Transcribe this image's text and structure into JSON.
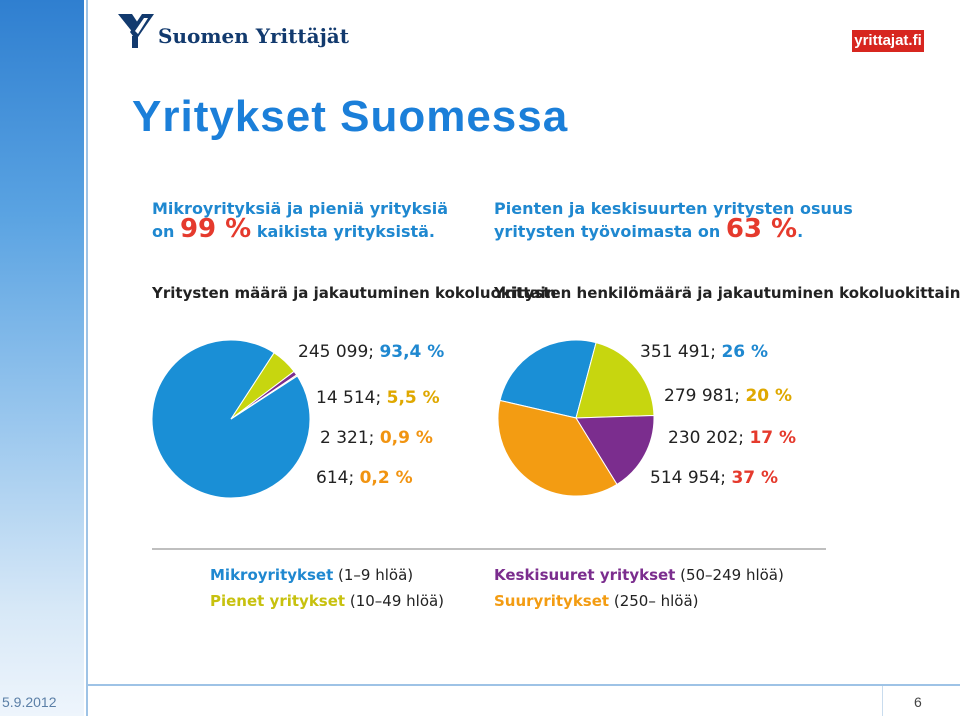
{
  "header": {
    "logo_text": "Suomen Yrittäjät",
    "badge_text": "yrittajat.fi"
  },
  "slide": {
    "title": "Yritykset Suomessa",
    "headline_left": {
      "line1": "Mikroyrityksiä ja pieniä yrityksiä",
      "line2_pre": "on ",
      "line2_num": "99 %",
      "line2_post": " kaikista yrityksistä."
    },
    "headline_right": {
      "line1": "Pienten ja keskisuurten yritysten osuus",
      "line2_pre": "yritysten työvoimasta on ",
      "line2_num": "63 %",
      "line2_post": "."
    }
  },
  "legend": {
    "micro_name": "Mikroyritykset",
    "micro_range": " (1–9 hlöä)",
    "small_name": "Pienet yritykset",
    "small_range": " (10–49 hlöä)",
    "medium_name": "Keskisuuret yritykset",
    "medium_range": " (50–249 hlöä)",
    "large_name": "Suuryritykset",
    "large_range": " (250– hlöä)"
  },
  "footer": {
    "date": "5.9.2012",
    "page": "6"
  },
  "colors": {
    "micro": "#1a8fd6",
    "small": "#c7d60f",
    "medium": "#7b2d8e",
    "large": "#f39c12",
    "accent_red": "#e53a2d",
    "title_blue": "#1b7fd9"
  },
  "chart_data": [
    {
      "type": "pie",
      "title": "Yritysten määrä ja jakautuminen kokoluokittain",
      "slices": [
        {
          "name": "Mikroyritykset",
          "value": 245099,
          "value_label": "245 099;",
          "percent": 93.4,
          "percent_label": "93,4 %",
          "color": "#1a8fd6"
        },
        {
          "name": "Pienet yritykset",
          "value": 14514,
          "value_label": "14 514;",
          "percent": 5.5,
          "percent_label": "5,5 %",
          "color": "#c7d60f"
        },
        {
          "name": "Keskisuuret yritykset",
          "value": 2321,
          "value_label": "2 321;",
          "percent": 0.9,
          "percent_label": "0,9 %",
          "color": "#7b2d8e"
        },
        {
          "name": "Suuryritykset",
          "value": 614,
          "value_label": "614;",
          "percent": 0.2,
          "percent_label": "0,2 %",
          "color": "#f39c12"
        }
      ]
    },
    {
      "type": "pie",
      "title": "Yritysten henkilömäärä ja jakautuminen kokoluokittain",
      "slices": [
        {
          "name": "Mikroyritykset",
          "value": 351491,
          "value_label": "351 491;",
          "percent": 26,
          "percent_label": "26 %",
          "color": "#1a8fd6"
        },
        {
          "name": "Pienet yritykset",
          "value": 279981,
          "value_label": "279 981;",
          "percent": 20,
          "percent_label": "20 %",
          "color": "#c7d60f"
        },
        {
          "name": "Keskisuuret yritykset",
          "value": 230202,
          "value_label": "230 202;",
          "percent": 17,
          "percent_label": "17 %",
          "color": "#7b2d8e"
        },
        {
          "name": "Suuryritykset",
          "value": 514954,
          "value_label": "514 954;",
          "percent": 37,
          "percent_label": "37 %",
          "color": "#f39c12"
        }
      ]
    }
  ]
}
